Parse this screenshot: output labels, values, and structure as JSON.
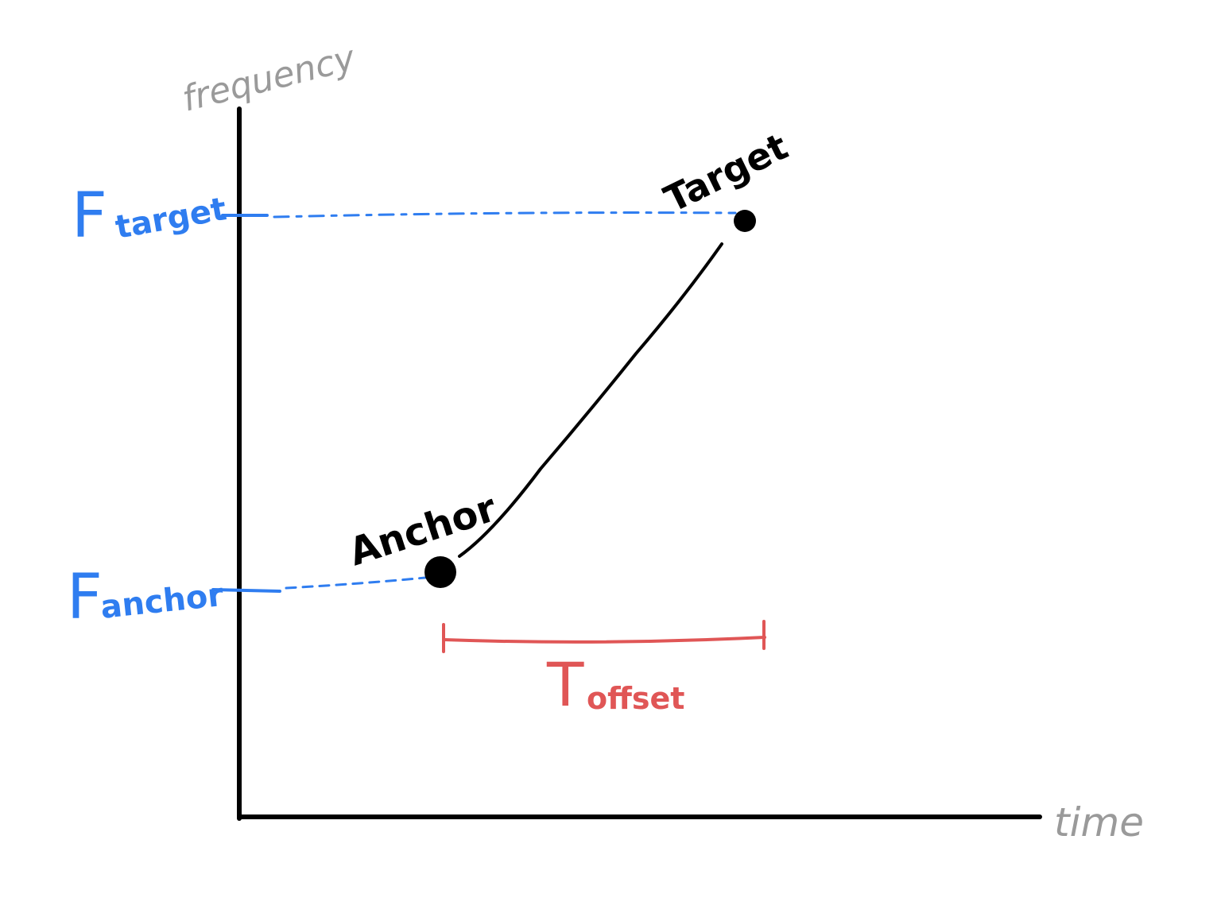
{
  "axes": {
    "y_label": "frequency",
    "x_label": "time",
    "axis_color": "#000000",
    "label_color": "#9a9a9a"
  },
  "points": {
    "anchor": {
      "label": "Anchor"
    },
    "target": {
      "label": "Target"
    }
  },
  "frequency_labels": {
    "target": {
      "main": "F",
      "sub": "target"
    },
    "anchor": {
      "main": "F",
      "sub": "anchor"
    },
    "color": "#2f7df0"
  },
  "offset_label": {
    "main": "T",
    "sub": "offset",
    "color": "#e05656"
  }
}
